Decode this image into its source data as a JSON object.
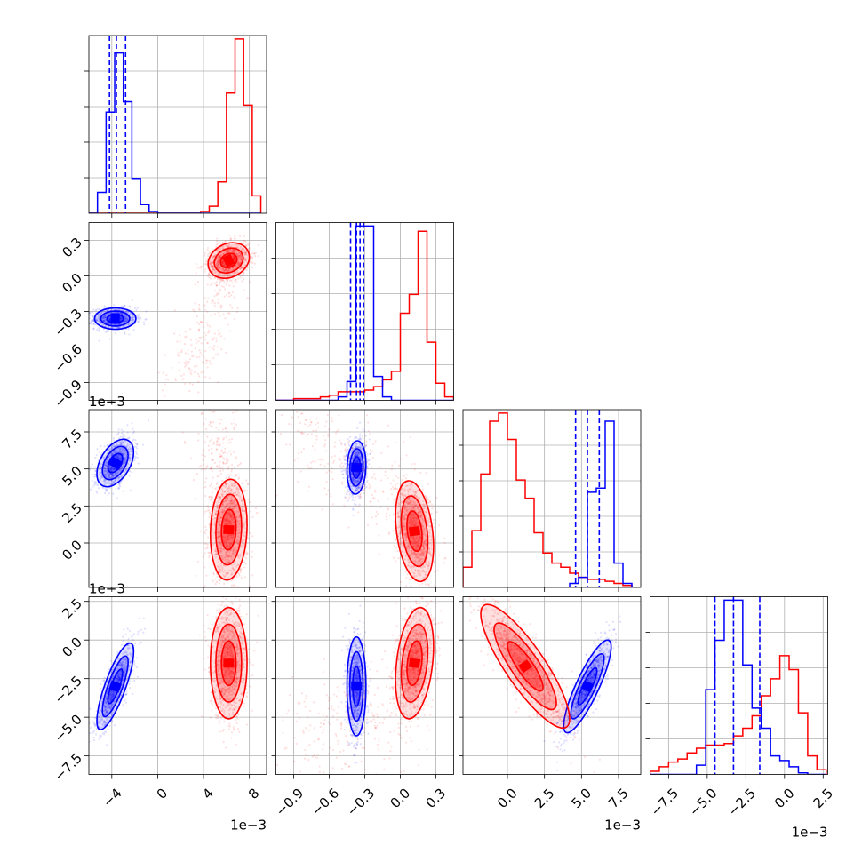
{
  "chart_data": {
    "type": "corner",
    "grid": true,
    "series": [
      {
        "name": "",
        "color": "#0000ff"
      },
      {
        "name": "",
        "color": "#ff0000"
      }
    ],
    "parameters": [
      {
        "index": 0,
        "range": [
          -0.006,
          0.0095
        ],
        "ticks": [
          -0.004,
          0.0,
          0.004,
          0.008
        ],
        "tick_labels": [
          "−4",
          "0",
          "4",
          "8"
        ],
        "offset_text": "1e−3"
      },
      {
        "index": 1,
        "range": [
          -1.05,
          0.45
        ],
        "ticks": [
          -0.9,
          -0.6,
          -0.3,
          0.0,
          0.3
        ],
        "tick_labels": [
          "−0.9",
          "−0.6",
          "−0.3",
          "0.0",
          "0.3"
        ],
        "offset_text": ""
      },
      {
        "index": 2,
        "range": [
          -0.003,
          0.009
        ],
        "ticks": [
          0.0,
          0.0025,
          0.005,
          0.0075
        ],
        "tick_labels": [
          "0.0",
          "2.5",
          "5.0",
          "7.5"
        ],
        "offset_text": "1e−3"
      },
      {
        "index": 3,
        "range": [
          -0.0087,
          0.0028
        ],
        "ticks": [
          -0.0075,
          -0.005,
          -0.0025,
          0.0,
          0.0025
        ],
        "tick_labels": [
          "−7.5",
          "−5.0",
          "−2.5",
          "0.0",
          "2.5"
        ],
        "offset_text": "1e−3"
      }
    ],
    "histograms": [
      {
        "param": 0,
        "bin_edges": [
          -0.006,
          -0.00525,
          -0.0045,
          -0.00375,
          -0.003,
          -0.00225,
          -0.0015,
          -0.00075,
          0.0,
          0.00075,
          0.0015,
          0.00225,
          0.003,
          0.00375,
          0.0045,
          0.00525,
          0.006,
          0.00675,
          0.0075,
          0.00825,
          0.009
        ],
        "blue": [
          0,
          0.12,
          0.58,
          0.92,
          0.64,
          0.2,
          0.05,
          0.01,
          0,
          0,
          0,
          0,
          0,
          0,
          0,
          0,
          0,
          0,
          0,
          0
        ],
        "red": [
          0,
          0,
          0,
          0,
          0,
          0,
          0,
          0,
          0,
          0,
          0,
          0,
          0,
          0.01,
          0.04,
          0.18,
          0.69,
          1.0,
          0.62,
          0.1
        ],
        "quantile_lines": [
          -0.0042,
          -0.0036,
          -0.0028
        ]
      },
      {
        "param": 1,
        "bin_edges": [
          -1.05,
          -0.975,
          -0.9,
          -0.825,
          -0.75,
          -0.675,
          -0.6,
          -0.525,
          -0.45,
          -0.375,
          -0.3,
          -0.225,
          -0.15,
          -0.075,
          0.0,
          0.075,
          0.15,
          0.225,
          0.3,
          0.375,
          0.45
        ],
        "blue": [
          0,
          0,
          0,
          0,
          0,
          0,
          0,
          0.02,
          0.11,
          1.02,
          1.02,
          0.14,
          0.02,
          0,
          0,
          0,
          0,
          0,
          0,
          0
        ],
        "red": [
          0,
          0,
          0.01,
          0.01,
          0.01,
          0.02,
          0.03,
          0.05,
          0.05,
          0.05,
          0.06,
          0.08,
          0.12,
          0.17,
          0.51,
          0.62,
          0.99,
          0.34,
          0.1,
          0.02
        ],
        "quantile_lines": [
          -0.42,
          -0.37,
          -0.34,
          -0.31
        ]
      },
      {
        "param": 2,
        "bin_edges": [
          -0.003,
          -0.0024,
          -0.0018,
          -0.0012,
          -0.0006,
          0.0,
          0.0006,
          0.0012,
          0.0018,
          0.0024,
          0.003,
          0.0036,
          0.0042,
          0.0048,
          0.0054,
          0.006,
          0.0066,
          0.0072,
          0.0078,
          0.0084,
          0.009
        ],
        "blue": [
          0,
          0,
          0,
          0,
          0,
          0,
          0,
          0,
          0,
          0,
          0,
          0,
          0.02,
          0.05,
          0.47,
          0.49,
          0.82,
          0.12,
          0.02,
          0
        ],
        "red": [
          0.1,
          0.28,
          0.56,
          0.82,
          0.86,
          0.73,
          0.53,
          0.44,
          0.27,
          0.17,
          0.12,
          0.1,
          0.07,
          0.05,
          0.04,
          0.04,
          0.03,
          0.02,
          0.01,
          0
        ],
        "quantile_lines": [
          0.0046,
          0.0054,
          0.0062
        ]
      },
      {
        "param": 3,
        "bin_edges": [
          -0.0087,
          -0.0081,
          -0.0075,
          -0.0069,
          -0.0063,
          -0.0057,
          -0.0051,
          -0.0045,
          -0.0039,
          -0.0033,
          -0.0027,
          -0.0021,
          -0.0015,
          -0.0009,
          -0.0003,
          0.0003,
          0.0009,
          0.0015,
          0.0021,
          0.0027
        ],
        "blue": [
          0,
          0,
          0,
          0,
          0,
          0.06,
          0.55,
          0.87,
          1.13,
          1.13,
          0.71,
          0.43,
          0.3,
          0.12,
          0.09,
          0.05,
          0.01,
          0,
          0
        ],
        "red": [
          0.02,
          0.05,
          0.08,
          0.1,
          0.14,
          0.17,
          0.19,
          0.19,
          0.2,
          0.25,
          0.3,
          0.38,
          0.51,
          0.62,
          0.77,
          0.68,
          0.4,
          0.12,
          0.03
        ],
        "quantile_lines": [
          -0.0045,
          -0.0033,
          -0.0016
        ]
      }
    ],
    "clusters": [
      {
        "x": 0,
        "y": 1,
        "color": "#0000ff",
        "mean": [
          -0.0037,
          -0.36
        ],
        "sd": [
          0.0009,
          0.045
        ],
        "rho": 0.0,
        "tail": null,
        "n": 900
      },
      {
        "x": 0,
        "y": 1,
        "color": "#ff0000",
        "mean": [
          0.0062,
          0.13
        ],
        "sd": [
          0.0009,
          0.075
        ],
        "rho": 0.2,
        "tail": {
          "from": [
            0.0058,
            0.0
          ],
          "to": [
            0.0022,
            -0.9
          ]
        },
        "n": 1100
      },
      {
        "x": 0,
        "y": 2,
        "color": "#0000ff",
        "mean": [
          -0.0037,
          0.0054
        ],
        "sd": [
          0.0008,
          0.0008
        ],
        "rho": 0.45,
        "tail": null,
        "n": 900
      },
      {
        "x": 0,
        "y": 2,
        "color": "#ff0000",
        "mean": [
          0.0062,
          0.0009
        ],
        "sd": [
          0.0008,
          0.0017
        ],
        "rho": 0.1,
        "tail": {
          "from": [
            0.006,
            0.003
          ],
          "to": [
            0.0048,
            0.0078
          ]
        },
        "n": 1100
      },
      {
        "x": 0,
        "y": 3,
        "color": "#0000ff",
        "mean": [
          -0.0037,
          -0.003
        ],
        "sd": [
          0.0008,
          0.0014
        ],
        "rho": 0.8,
        "tail": null,
        "n": 900
      },
      {
        "x": 0,
        "y": 3,
        "color": "#ff0000",
        "mean": [
          0.0062,
          -0.0015
        ],
        "sd": [
          0.0008,
          0.0018
        ],
        "rho": 0.0,
        "tail": null,
        "n": 1100
      },
      {
        "x": 1,
        "y": 2,
        "color": "#0000ff",
        "mean": [
          -0.37,
          0.0051
        ],
        "sd": [
          0.04,
          0.0009
        ],
        "rho": 0.1,
        "tail": null,
        "n": 900
      },
      {
        "x": 1,
        "y": 2,
        "color": "#ff0000",
        "mean": [
          0.12,
          0.0008
        ],
        "sd": [
          0.08,
          0.0017
        ],
        "rho": -0.3,
        "tail": {
          "from": [
            -0.1,
            0.003
          ],
          "to": [
            -0.9,
            0.0078
          ]
        },
        "n": 1100
      },
      {
        "x": 1,
        "y": 3,
        "color": "#0000ff",
        "mean": [
          -0.37,
          -0.003
        ],
        "sd": [
          0.04,
          0.0016
        ],
        "rho": 0.0,
        "tail": null,
        "n": 900
      },
      {
        "x": 1,
        "y": 3,
        "color": "#ff0000",
        "mean": [
          0.12,
          -0.0015
        ],
        "sd": [
          0.08,
          0.0018
        ],
        "rho": 0.3,
        "tail": {
          "from": [
            -0.05,
            -0.005
          ],
          "to": [
            -0.9,
            -0.0065
          ]
        },
        "n": 1100
      },
      {
        "x": 2,
        "y": 3,
        "color": "#0000ff",
        "mean": [
          0.0054,
          -0.003
        ],
        "sd": [
          0.0008,
          0.0015
        ],
        "rho": 0.85,
        "tail": null,
        "n": 900
      },
      {
        "x": 2,
        "y": 3,
        "color": "#ff0000",
        "mean": [
          0.0012,
          -0.0017
        ],
        "sd": [
          0.0015,
          0.002
        ],
        "rho": -0.85,
        "tail": null,
        "n": 1200
      }
    ]
  }
}
